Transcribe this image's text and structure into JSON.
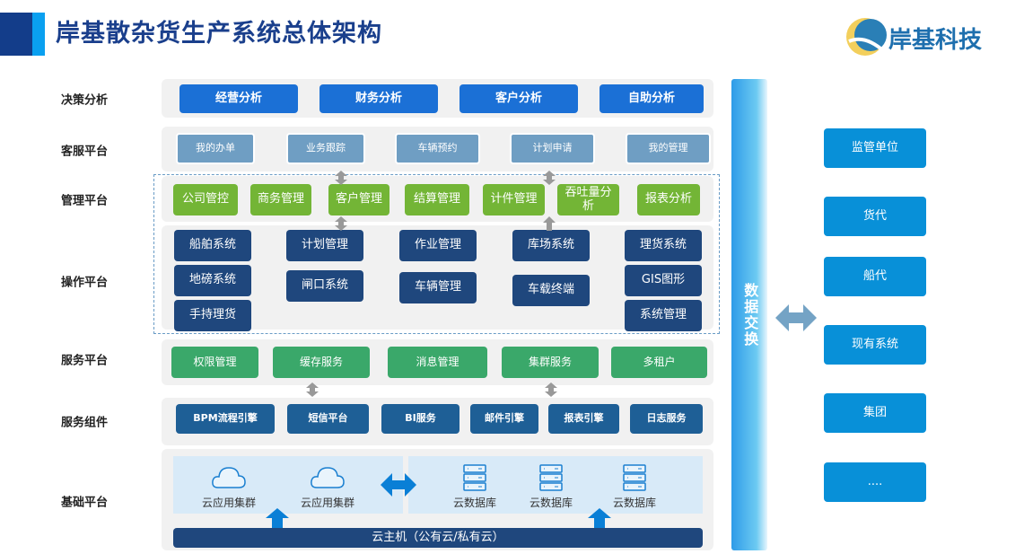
{
  "header": {
    "title": "岸基散杂货生产系统总体架构",
    "logo_text": "岸基科技"
  },
  "colors": {
    "title": "#1a3f8c",
    "decision": "#1b70d6",
    "service_portal": "#6f9ec3",
    "management": "#73b536",
    "operation": "#1f477d",
    "service_platform": "#3aa86a",
    "components": "#1e5f96",
    "exchange": "#1a8fe0",
    "external": "#0890d8"
  },
  "rows": [
    {
      "label": "决策分析",
      "items": [
        "经营分析",
        "财务分析",
        "客户分析",
        "自助分析"
      ]
    },
    {
      "label": "客服平台",
      "items": [
        "我的办单",
        "业务跟踪",
        "车辆预约",
        "计划申请",
        "我的管理"
      ]
    },
    {
      "label": "管理平台",
      "items": [
        "公司管控",
        "商务管理",
        "客户管理",
        "结算管理",
        "计件管理",
        "吞吐量分析",
        "报表分析"
      ]
    },
    {
      "label": "操作平台",
      "items": [
        "船舶系统",
        "地磅系统",
        "手持理货",
        "计划管理",
        "闸口系统",
        "作业管理",
        "车辆管理",
        "库场系统",
        "车载终端",
        "理货系统",
        "GIS图形",
        "系统管理"
      ]
    },
    {
      "label": "服务平台",
      "items": [
        "权限管理",
        "缓存服务",
        "消息管理",
        "集群服务",
        "多租户"
      ]
    },
    {
      "label": "服务组件",
      "items": [
        "BPM流程引擎",
        "短信平台",
        "BI服务",
        "邮件引擎",
        "报表引擎",
        "日志服务"
      ]
    },
    {
      "label": "基础平台",
      "items": [
        "云应用集群",
        "云应用集群",
        "云数据库",
        "云数据库",
        "云数据库"
      ],
      "host": "云主机（公有云/私有云）"
    }
  ],
  "exchange": {
    "label": "数据交换"
  },
  "external": [
    "监管单位",
    "货代",
    "船代",
    "现有系统",
    "集团",
    "...."
  ],
  "icons": [
    "cloud-icon",
    "server-database-icon",
    "double-arrow-icon",
    "up-arrow-icon"
  ]
}
